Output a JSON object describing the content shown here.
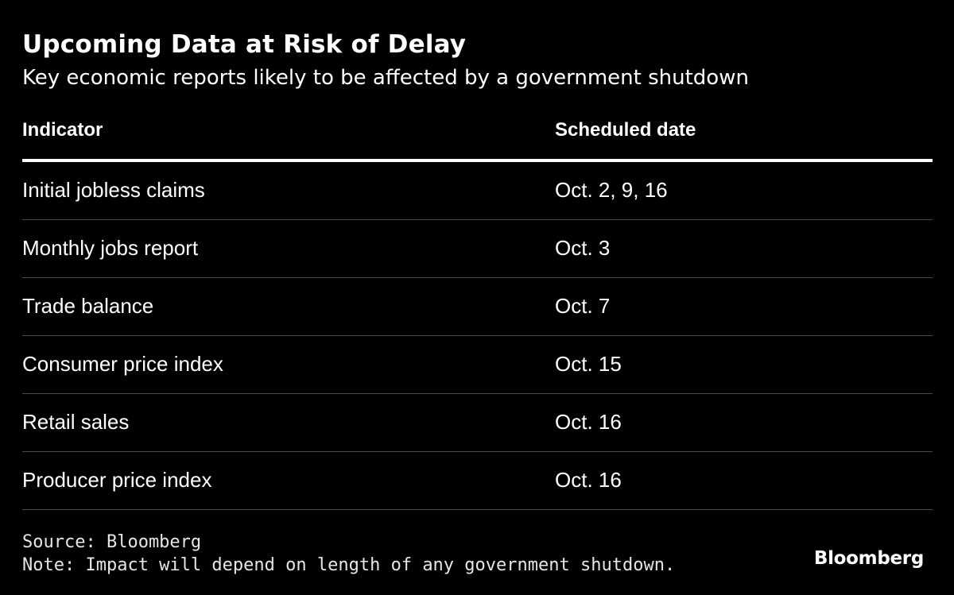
{
  "title": "Upcoming Data at Risk of Delay",
  "subtitle": "Key economic reports likely to be affected by a government shutdown",
  "colors": {
    "background": "#000000",
    "text": "#ffffff",
    "divider": "#4a4a4a"
  },
  "chart_data": {
    "type": "table",
    "columns": [
      "Indicator",
      "Scheduled date"
    ],
    "rows": [
      [
        "Initial jobless claims",
        "Oct. 2, 9, 16"
      ],
      [
        "Monthly jobs report",
        "Oct. 3"
      ],
      [
        "Trade balance",
        "Oct. 7"
      ],
      [
        "Consumer price index",
        "Oct. 15"
      ],
      [
        "Retail sales",
        "Oct. 16"
      ],
      [
        "Producer price index",
        "Oct. 16"
      ]
    ]
  },
  "footer": {
    "source": "Source: Bloomberg",
    "note": "Note: Impact will depend on length of any government shutdown."
  },
  "logo": "Bloomberg"
}
